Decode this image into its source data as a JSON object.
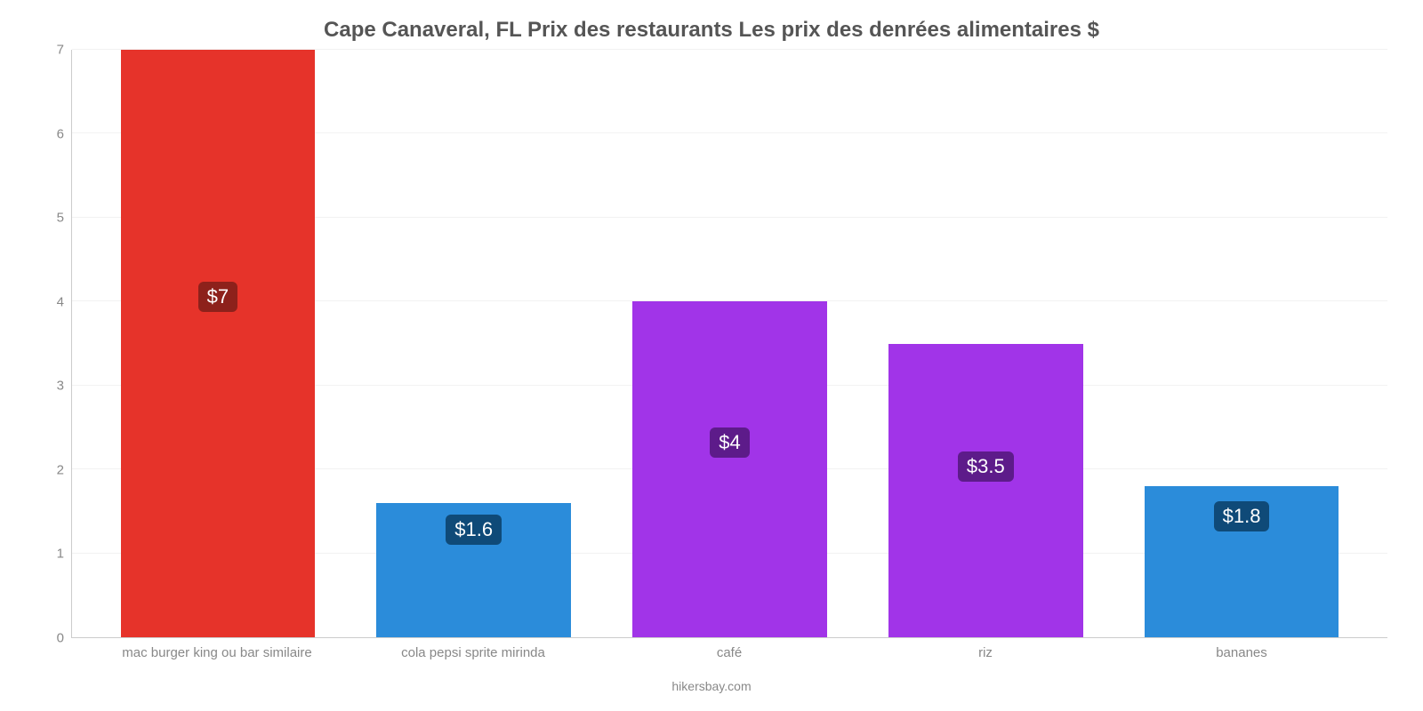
{
  "chart": {
    "type": "bar",
    "title": "Cape Canaveral, FL Prix des restaurants Les prix des denrées alimentaires $",
    "title_fontsize": 24,
    "title_color": "#555555",
    "background_color": "#ffffff",
    "grid_color": "#f2f2f2",
    "axis_color": "#cccccc",
    "tick_label_color": "#888888",
    "tick_label_fontsize": 15,
    "ylim": [
      0,
      7
    ],
    "ytick_step": 1,
    "yticks": [
      {
        "value": 0,
        "label": "0"
      },
      {
        "value": 1,
        "label": "1"
      },
      {
        "value": 2,
        "label": "2"
      },
      {
        "value": 3,
        "label": "3"
      },
      {
        "value": 4,
        "label": "4"
      },
      {
        "value": 5,
        "label": "5"
      },
      {
        "value": 6,
        "label": "6"
      },
      {
        "value": 7,
        "label": "7"
      }
    ],
    "bar_width_ratio": 0.76,
    "bars": [
      {
        "category": "mac burger king ou bar similaire",
        "value": 7,
        "value_label": "$7",
        "bar_color": "#e6332a",
        "label_bg_color": "#8d211b",
        "label_text_color": "#ffffff"
      },
      {
        "category": "cola pepsi sprite mirinda",
        "value": 1.6,
        "value_label": "$1.6",
        "bar_color": "#2b8cda",
        "label_bg_color": "#0f4a78",
        "label_text_color": "#ffffff"
      },
      {
        "category": "café",
        "value": 4,
        "value_label": "$4",
        "bar_color": "#a134e8",
        "label_bg_color": "#5d1b8a",
        "label_text_color": "#ffffff"
      },
      {
        "category": "riz",
        "value": 3.5,
        "value_label": "$3.5",
        "bar_color": "#a134e8",
        "label_bg_color": "#5d1b8a",
        "label_text_color": "#ffffff"
      },
      {
        "category": "bananes",
        "value": 1.8,
        "value_label": "$1.8",
        "bar_color": "#2b8cda",
        "label_bg_color": "#0f4a78",
        "label_text_color": "#ffffff"
      }
    ],
    "value_label_fontsize": 22,
    "source_text": "hikersbay.com"
  }
}
